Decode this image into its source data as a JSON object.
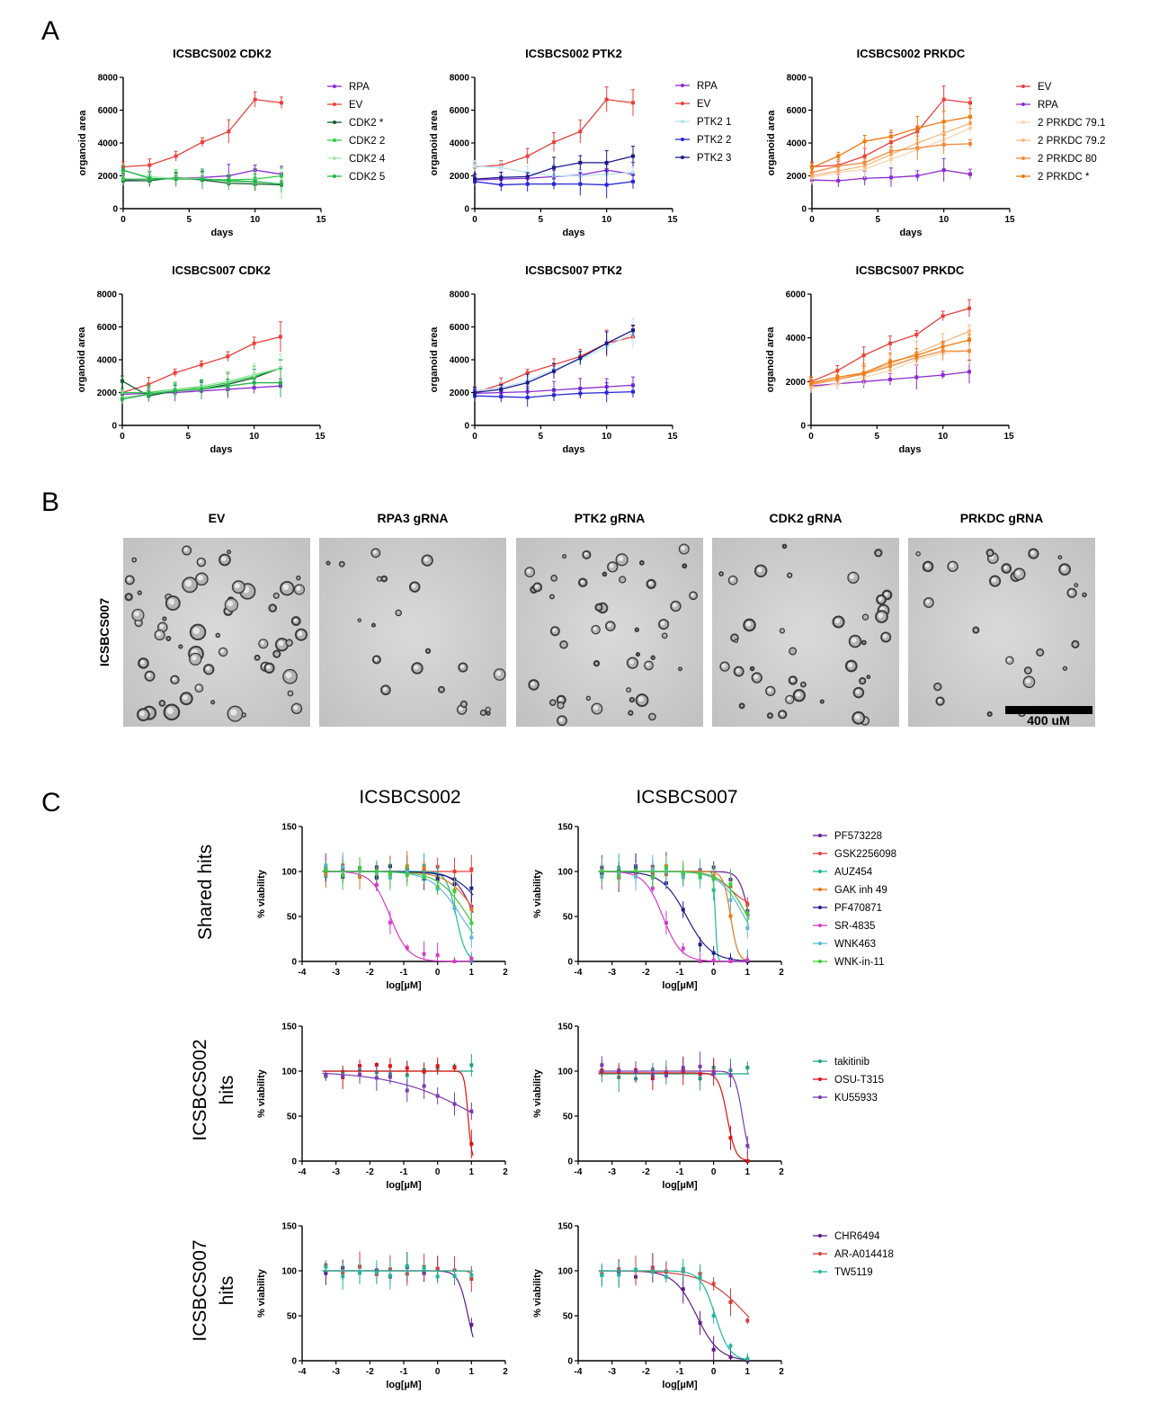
{
  "panel_letters": {
    "a": "A",
    "b": "B",
    "c": "C"
  },
  "colors": {
    "RPA": "#8b2bd1",
    "EV": "#e8413c",
    "CDK2 *": "#0f5c2e",
    "CDK2 2": "#2ecc40",
    "CDK2 4": "#a8e6b0",
    "CDK2 5": "#22b24c",
    "PTK2 1": "#b9e3f0",
    "PTK2 2": "#2626d9",
    "PTK2 3": "#1a1a8c",
    "2 PRKDC 79.1": "#f9d6b6",
    "2 PRKDC 79.2": "#f6b97f",
    "2 PRKDC 80": "#f08a3c",
    "2 PRKDC *": "#f07a10",
    "PF573228": "#6a1b9a",
    "GSK2256098": "#e8413c",
    "AUZ454": "#1fb89a",
    "GAK inh 49": "#e8761c",
    "PF470871": "#1f1f8a",
    "SR-4835": "#d63cc9",
    "WNK463": "#5fb6e6",
    "WNK-in-11": "#3ccc3c",
    "takitinib": "#1fa37f",
    "OSU-T315": "#e01010",
    "KU55933": "#7a3cb0",
    "CHR6494": "#5a1a8a",
    "AR-A014418": "#d63c3c",
    "TW5119": "#1fb89a"
  },
  "panel_b": {
    "row_label": "ICSBCS007",
    "image_titles": [
      "EV",
      "RPA3 gRNA",
      "PTK2 gRNA",
      "CDK2 gRNA",
      "PRKDC gRNA"
    ],
    "scale_bar_label": "400 uM"
  },
  "panel_c": {
    "column_titles": [
      "ICSBCS002",
      "ICSBCS007"
    ],
    "row_titles": [
      [
        "Shared hits"
      ],
      [
        "ICSBCS002",
        "hits"
      ],
      [
        "ICSBCS007",
        "hits"
      ]
    ],
    "legends": [
      [
        "PF573228",
        "GSK2256098",
        "AUZ454",
        "GAK inh 49",
        "PF470871",
        "SR-4835",
        "WNK463",
        "WNK-in-11"
      ],
      [
        "takitinib",
        "OSU-T315",
        "KU55933"
      ],
      [
        "CHR6494",
        "AR-A014418",
        "TW5119"
      ]
    ]
  },
  "chart_data": [
    {
      "id": "a1",
      "type": "line",
      "title": "ICSBCS002 CDK2",
      "xlabel": "days",
      "ylabel": "organoid area",
      "xlim": [
        0,
        15
      ],
      "ylim": [
        0,
        8000
      ],
      "xticks": [
        0,
        5,
        10,
        15
      ],
      "yticks": [
        0,
        2000,
        4000,
        6000,
        8000
      ],
      "x": [
        0,
        2,
        4,
        6,
        8,
        10,
        12
      ],
      "series": [
        {
          "name": "RPA",
          "values": [
            1750,
            1800,
            1850,
            1900,
            2000,
            2350,
            2100
          ]
        },
        {
          "name": "EV",
          "values": [
            2550,
            2650,
            3200,
            4050,
            4700,
            6650,
            6450
          ]
        },
        {
          "name": "CDK2 *",
          "values": [
            1700,
            1700,
            1900,
            1750,
            1550,
            1500,
            1450
          ]
        },
        {
          "name": "CDK2 2",
          "values": [
            1800,
            1800,
            1850,
            1800,
            1750,
            1800,
            2000
          ]
        },
        {
          "name": "CDK2 4",
          "values": [
            2300,
            1950,
            1850,
            1850,
            1650,
            1600,
            1500
          ]
        },
        {
          "name": "CDK2 5",
          "values": [
            2350,
            1850,
            1800,
            1800,
            1700,
            1650,
            1500
          ]
        }
      ],
      "legend": [
        "RPA",
        "EV",
        "CDK2 *",
        "CDK2 2",
        "CDK2 4",
        "CDK2 5"
      ]
    },
    {
      "id": "a2",
      "type": "line",
      "title": "ICSBCS002 PTK2",
      "xlabel": "days",
      "ylabel": "organoid area",
      "xlim": [
        0,
        15
      ],
      "ylim": [
        0,
        8000
      ],
      "xticks": [
        0,
        5,
        10,
        15
      ],
      "yticks": [
        0,
        2000,
        4000,
        6000,
        8000
      ],
      "x": [
        0,
        2,
        4,
        6,
        8,
        10,
        12
      ],
      "series": [
        {
          "name": "RPA",
          "values": [
            1750,
            1800,
            1850,
            1950,
            2050,
            2350,
            2100
          ]
        },
        {
          "name": "EV",
          "values": [
            2550,
            2650,
            3200,
            4050,
            4700,
            6650,
            6450
          ]
        },
        {
          "name": "PTK2 1",
          "values": [
            2600,
            2500,
            2200,
            2000,
            2000,
            2100,
            2200
          ]
        },
        {
          "name": "PTK2 2",
          "values": [
            1650,
            1450,
            1500,
            1500,
            1500,
            1450,
            1650
          ]
        },
        {
          "name": "PTK2 3",
          "values": [
            1800,
            1900,
            1950,
            2500,
            2800,
            2800,
            3200
          ]
        }
      ],
      "legend": [
        "RPA",
        "EV",
        "PTK2 1",
        "PTK2 2",
        "PTK2 3"
      ]
    },
    {
      "id": "a3",
      "type": "line",
      "title": "ICSBCS002 PRKDC",
      "xlabel": "days",
      "ylabel": "organoid area",
      "xlim": [
        0,
        15
      ],
      "ylim": [
        0,
        8000
      ],
      "xticks": [
        0,
        5,
        10,
        15
      ],
      "yticks": [
        0,
        2000,
        4000,
        6000,
        8000
      ],
      "x": [
        0,
        2,
        4,
        6,
        8,
        10,
        12
      ],
      "series": [
        {
          "name": "EV",
          "values": [
            2550,
            2650,
            3200,
            4050,
            4700,
            6650,
            6450
          ]
        },
        {
          "name": "RPA",
          "values": [
            1750,
            1700,
            1850,
            1900,
            2000,
            2350,
            2100
          ]
        },
        {
          "name": "2 PRKDC 79.1",
          "values": [
            1900,
            2200,
            2400,
            3000,
            3600,
            4200,
            4900
          ]
        },
        {
          "name": "2 PRKDC 79.2",
          "values": [
            2000,
            2300,
            2600,
            3300,
            4000,
            4600,
            5200
          ]
        },
        {
          "name": "2 PRKDC 80",
          "values": [
            2200,
            2600,
            2800,
            3500,
            3700,
            3900,
            3950
          ]
        },
        {
          "name": "2 PRKDC *",
          "values": [
            2500,
            3200,
            4100,
            4400,
            4900,
            5300,
            5600
          ]
        }
      ],
      "legend": [
        "EV",
        "RPA",
        "2 PRKDC 79.1",
        "2 PRKDC 79.2",
        "2 PRKDC 80",
        "2 PRKDC *"
      ]
    },
    {
      "id": "a4",
      "type": "line",
      "title": "ICSBCS007 CDK2",
      "xlabel": "days",
      "ylabel": "organoid area",
      "xlim": [
        0,
        15
      ],
      "ylim": [
        0,
        8000
      ],
      "xticks": [
        0,
        5,
        10,
        15
      ],
      "yticks": [
        0,
        2000,
        4000,
        6000,
        8000
      ],
      "x": [
        0,
        2,
        4,
        6,
        8,
        10,
        12
      ],
      "series": [
        {
          "name": "RPA",
          "values": [
            1900,
            1950,
            2000,
            2100,
            2200,
            2300,
            2400
          ]
        },
        {
          "name": "EV",
          "values": [
            2000,
            2500,
            3200,
            3700,
            4200,
            5000,
            5400
          ]
        },
        {
          "name": "CDK2 *",
          "values": [
            2700,
            1800,
            2100,
            2200,
            2500,
            2900,
            3500
          ]
        },
        {
          "name": "CDK2 2",
          "values": [
            2000,
            2000,
            2200,
            2300,
            2600,
            3000,
            3500
          ]
        },
        {
          "name": "CDK2 4",
          "values": [
            1700,
            1900,
            2200,
            2400,
            2700,
            3100,
            3500
          ]
        },
        {
          "name": "CDK2 5",
          "values": [
            1600,
            1900,
            2100,
            2200,
            2400,
            2600,
            2600
          ]
        }
      ]
    },
    {
      "id": "a5",
      "type": "line",
      "title": "ICSBCS007 PTK2",
      "xlabel": "days",
      "ylabel": "organoid area",
      "xlim": [
        0,
        15
      ],
      "ylim": [
        0,
        8000
      ],
      "xticks": [
        0,
        5,
        10,
        15
      ],
      "yticks": [
        0,
        2000,
        4000,
        6000,
        8000
      ],
      "x": [
        0,
        2,
        4,
        6,
        8,
        10,
        12
      ],
      "series": [
        {
          "name": "RPA",
          "values": [
            1950,
            2000,
            2050,
            2150,
            2250,
            2350,
            2450
          ]
        },
        {
          "name": "EV",
          "values": [
            2000,
            2500,
            3200,
            3700,
            4200,
            5000,
            5400
          ]
        },
        {
          "name": "PTK2 1",
          "values": [
            2100,
            2300,
            2700,
            3400,
            4000,
            4800,
            5600
          ]
        },
        {
          "name": "PTK2 2",
          "values": [
            1800,
            1750,
            1700,
            1850,
            1950,
            2000,
            2050
          ]
        },
        {
          "name": "PTK2 3",
          "values": [
            2000,
            2200,
            2600,
            3300,
            4100,
            5000,
            5800
          ]
        }
      ]
    },
    {
      "id": "a6",
      "type": "line",
      "title": "ICSBCS007 PRKDC",
      "xlabel": "days",
      "ylabel": "organoid area",
      "xlim": [
        0,
        15
      ],
      "ylim": [
        0,
        6000
      ],
      "xticks": [
        0,
        5,
        10,
        15
      ],
      "yticks": [
        0,
        2000,
        4000,
        6000
      ],
      "x": [
        0,
        2,
        4,
        6,
        8,
        10,
        12
      ],
      "series": [
        {
          "name": "EV",
          "values": [
            2000,
            2500,
            3200,
            3750,
            4150,
            5000,
            5350
          ]
        },
        {
          "name": "RPA",
          "values": [
            1800,
            1900,
            2000,
            2100,
            2200,
            2300,
            2450
          ]
        },
        {
          "name": "2 PRKDC 79.1",
          "values": [
            1700,
            1900,
            2200,
            2500,
            3000,
            3300,
            3400
          ]
        },
        {
          "name": "2 PRKDC 79.2",
          "values": [
            1850,
            2100,
            2400,
            2800,
            3300,
            3800,
            4300
          ]
        },
        {
          "name": "2 PRKDC 80",
          "values": [
            1900,
            2100,
            2350,
            2700,
            3100,
            3400,
            3400
          ]
        },
        {
          "name": "2 PRKDC *",
          "values": [
            1950,
            2200,
            2400,
            2900,
            3200,
            3600,
            3900
          ]
        }
      ]
    },
    {
      "id": "c1",
      "type": "scatter",
      "xlabel": "log[µM]",
      "ylabel": "% viability",
      "xlim": [
        -4,
        2
      ],
      "ylim": [
        0,
        150
      ],
      "xticks": [
        -4,
        -3,
        -2,
        -1,
        0,
        1,
        2
      ],
      "yticks": [
        0,
        50,
        100,
        150
      ],
      "x": [
        -3.3,
        -2.8,
        -2.3,
        -1.8,
        -1.4,
        -0.9,
        -0.4,
        0.0,
        0.5,
        1.0
      ],
      "series": [
        {
          "name": "PF573228",
          "top": 100,
          "bottom": 0,
          "ic50": 1.1,
          "hill": 1.5
        },
        {
          "name": "GSK2256098",
          "top": 100,
          "bottom": 95,
          "ic50": 3.0,
          "hill": 1.0
        },
        {
          "name": "AUZ454",
          "top": 100,
          "bottom": 0,
          "ic50": 0.55,
          "hill": 3.0
        },
        {
          "name": "GAK inh 49",
          "top": 100,
          "bottom": 0,
          "ic50": 1.2,
          "hill": 1.0
        },
        {
          "name": "PF470871",
          "top": 100,
          "bottom": 0,
          "ic50": 1.5,
          "hill": 1.0
        },
        {
          "name": "SR-4835",
          "top": 100,
          "bottom": 0,
          "ic50": -1.4,
          "hill": 1.6
        },
        {
          "name": "WNK463",
          "top": 100,
          "bottom": 0,
          "ic50": 0.7,
          "hill": 1.0
        },
        {
          "name": "WNK-in-11",
          "top": 100,
          "bottom": 0,
          "ic50": 0.9,
          "hill": 1.0
        }
      ]
    },
    {
      "id": "c2",
      "type": "scatter",
      "xlabel": "log[µM]",
      "ylabel": "% viability",
      "xlim": [
        -4,
        2
      ],
      "ylim": [
        0,
        150
      ],
      "xticks": [
        -4,
        -3,
        -2,
        -1,
        0,
        1,
        2
      ],
      "yticks": [
        0,
        50,
        100,
        150
      ],
      "x": [
        -3.3,
        -2.8,
        -2.3,
        -1.8,
        -1.4,
        -0.9,
        -0.4,
        0.0,
        0.5,
        1.0
      ],
      "series": [
        {
          "name": "PF573228",
          "top": 100,
          "bottom": 0,
          "ic50": 1.05,
          "hill": 3.0
        },
        {
          "name": "GSK2256098",
          "top": 100,
          "bottom": 60,
          "ic50": 0.5,
          "hill": 1.5
        },
        {
          "name": "AUZ454",
          "top": 100,
          "bottom": 0,
          "ic50": 0.05,
          "hill": 15.0
        },
        {
          "name": "GAK inh 49",
          "top": 100,
          "bottom": 0,
          "ic50": 0.5,
          "hill": 4.0
        },
        {
          "name": "PF470871",
          "top": 100,
          "bottom": 0,
          "ic50": -0.8,
          "hill": 1.2
        },
        {
          "name": "SR-4835",
          "top": 100,
          "bottom": 0,
          "ic50": -1.5,
          "hill": 1.6
        },
        {
          "name": "WNK463",
          "top": 100,
          "bottom": 0,
          "ic50": 0.9,
          "hill": 1.2
        },
        {
          "name": "WNK-in-11",
          "top": 100,
          "bottom": 0,
          "ic50": 1.0,
          "hill": 1.2
        }
      ]
    },
    {
      "id": "c3",
      "type": "scatter",
      "xlabel": "log[µM]",
      "ylabel": "% viability",
      "xlim": [
        -4,
        2
      ],
      "ylim": [
        0,
        150
      ],
      "xticks": [
        -4,
        -3,
        -2,
        -1,
        0,
        1,
        2
      ],
      "yticks": [
        0,
        50,
        100,
        150
      ],
      "x": [
        -3.3,
        -2.8,
        -2.3,
        -1.8,
        -1.4,
        -0.9,
        -0.4,
        0.0,
        0.5,
        1.0
      ],
      "series": [
        {
          "name": "takitinib",
          "top": 100,
          "bottom": 95,
          "ic50": 3.0,
          "hill": 1.0
        },
        {
          "name": "OSU-T315",
          "top": 100,
          "bottom": 0,
          "ic50": 0.9,
          "hill": 8.0
        },
        {
          "name": "KU55933",
          "top": 100,
          "bottom": 0,
          "ic50": 1.2,
          "hill": 0.35
        }
      ]
    },
    {
      "id": "c4",
      "type": "scatter",
      "xlabel": "log[µM]",
      "ylabel": "% viability",
      "xlim": [
        -4,
        2
      ],
      "ylim": [
        0,
        150
      ],
      "xticks": [
        -4,
        -3,
        -2,
        -1,
        0,
        1,
        2
      ],
      "yticks": [
        0,
        50,
        100,
        150
      ],
      "x": [
        -3.3,
        -2.8,
        -2.3,
        -1.8,
        -1.4,
        -0.9,
        -0.4,
        0.0,
        0.5,
        1.0
      ],
      "series": [
        {
          "name": "takitinib",
          "top": 97,
          "bottom": 95,
          "ic50": 3.0,
          "hill": 1.0
        },
        {
          "name": "OSU-T315",
          "top": 98,
          "bottom": 0,
          "ic50": 0.4,
          "hill": 3.5
        },
        {
          "name": "KU55933",
          "top": 100,
          "bottom": 0,
          "ic50": 0.85,
          "hill": 4.0
        }
      ]
    },
    {
      "id": "c5",
      "type": "scatter",
      "xlabel": "log[µM]",
      "ylabel": "% viability",
      "xlim": [
        -4,
        2
      ],
      "ylim": [
        0,
        150
      ],
      "xticks": [
        -4,
        -3,
        -2,
        -1,
        0,
        1,
        2
      ],
      "yticks": [
        0,
        50,
        100,
        150
      ],
      "x": [
        -3.3,
        -2.8,
        -2.3,
        -1.8,
        -1.4,
        -0.9,
        -0.4,
        0.0,
        0.5,
        1.0
      ],
      "series": [
        {
          "name": "CHR6494",
          "top": 100,
          "bottom": 0,
          "ic50": 0.9,
          "hill": 3.0
        },
        {
          "name": "AR-A014418",
          "top": 100,
          "bottom": 0,
          "ic50": 1.3,
          "hill": 5.0
        },
        {
          "name": "TW5119",
          "top": 100,
          "bottom": 90,
          "ic50": 3.0,
          "hill": 1.0
        }
      ]
    },
    {
      "id": "c6",
      "type": "scatter",
      "xlabel": "log[µM]",
      "ylabel": "% viability",
      "xlim": [
        -4,
        2
      ],
      "ylim": [
        0,
        150
      ],
      "xticks": [
        -4,
        -3,
        -2,
        -1,
        0,
        1,
        2
      ],
      "yticks": [
        0,
        50,
        100,
        150
      ],
      "x": [
        -3.3,
        -2.8,
        -2.3,
        -1.8,
        -1.4,
        -0.9,
        -0.4,
        0.0,
        0.5,
        1.0
      ],
      "series": [
        {
          "name": "CHR6494",
          "top": 100,
          "bottom": 0,
          "ic50": -0.5,
          "hill": 1.3
        },
        {
          "name": "AR-A014418",
          "top": 100,
          "bottom": 0,
          "ic50": 1.0,
          "hill": 0.7
        },
        {
          "name": "TW5119",
          "top": 100,
          "bottom": 0,
          "ic50": 0.05,
          "hill": 2.0
        }
      ]
    }
  ]
}
